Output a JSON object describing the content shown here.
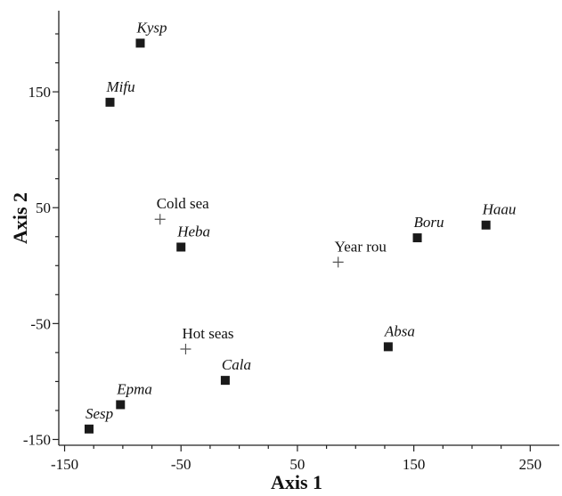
{
  "chart_data": {
    "type": "scatter",
    "xlabel": "Axis 1",
    "ylabel": "Axis 2",
    "xlim": [
      -155,
      275
    ],
    "ylim": [
      -155,
      220
    ],
    "x_ticks": [
      -150,
      -50,
      50,
      150,
      250
    ],
    "y_ticks": [
      150,
      50,
      -50,
      -150
    ],
    "grid": false,
    "species": [
      {
        "label": "Kysp",
        "x": -85,
        "y": 192
      },
      {
        "label": "Mifu",
        "x": -111,
        "y": 141
      },
      {
        "label": "Heba",
        "x": -50,
        "y": 16
      },
      {
        "label": "Boru",
        "x": 153,
        "y": 24
      },
      {
        "label": "Haau",
        "x": 212,
        "y": 35
      },
      {
        "label": "Absa",
        "x": 128,
        "y": -70
      },
      {
        "label": "Cala",
        "x": -12,
        "y": -99
      },
      {
        "label": "Epma",
        "x": -102,
        "y": -120
      },
      {
        "label": "Sesp",
        "x": -129,
        "y": -141
      }
    ],
    "environment": [
      {
        "label": "Cold sea",
        "x": -68,
        "y": 40
      },
      {
        "label": "Year rou",
        "x": 85,
        "y": 3
      },
      {
        "label": "Hot seas",
        "x": -46,
        "y": -72
      }
    ]
  }
}
